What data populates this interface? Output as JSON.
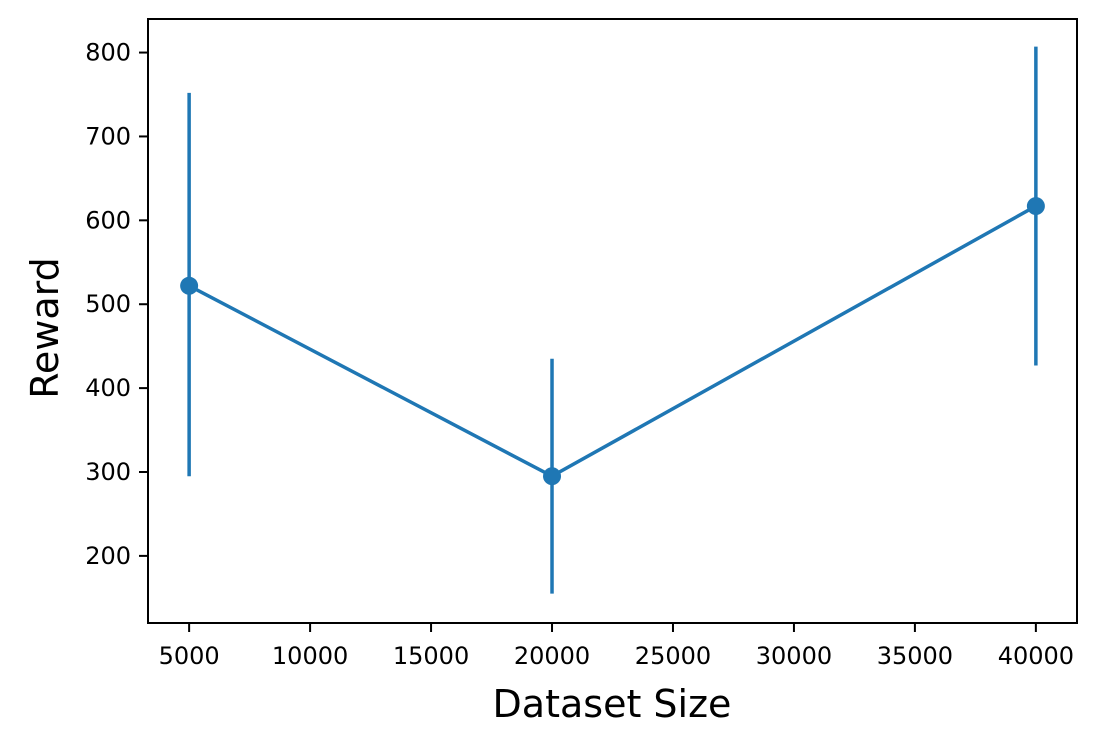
{
  "chart_data": {
    "type": "line",
    "title": "",
    "xlabel": "Dataset Size",
    "ylabel": "Reward",
    "x_ticks": [
      5000,
      10000,
      15000,
      20000,
      25000,
      30000,
      35000,
      40000
    ],
    "y_ticks": [
      200,
      300,
      400,
      500,
      600,
      700,
      800
    ],
    "xlim": [
      3300,
      41700
    ],
    "ylim": [
      120,
      840
    ],
    "grid": false,
    "legend": "none",
    "series": [
      {
        "color": "#1f77b4",
        "marker": "circle",
        "error_bars": true,
        "points": [
          {
            "x": 5000,
            "y": 522,
            "err_low": 295,
            "err_high": 752
          },
          {
            "x": 20000,
            "y": 295,
            "err_low": 155,
            "err_high": 435
          },
          {
            "x": 40000,
            "y": 617,
            "err_low": 427,
            "err_high": 807
          }
        ]
      }
    ]
  }
}
